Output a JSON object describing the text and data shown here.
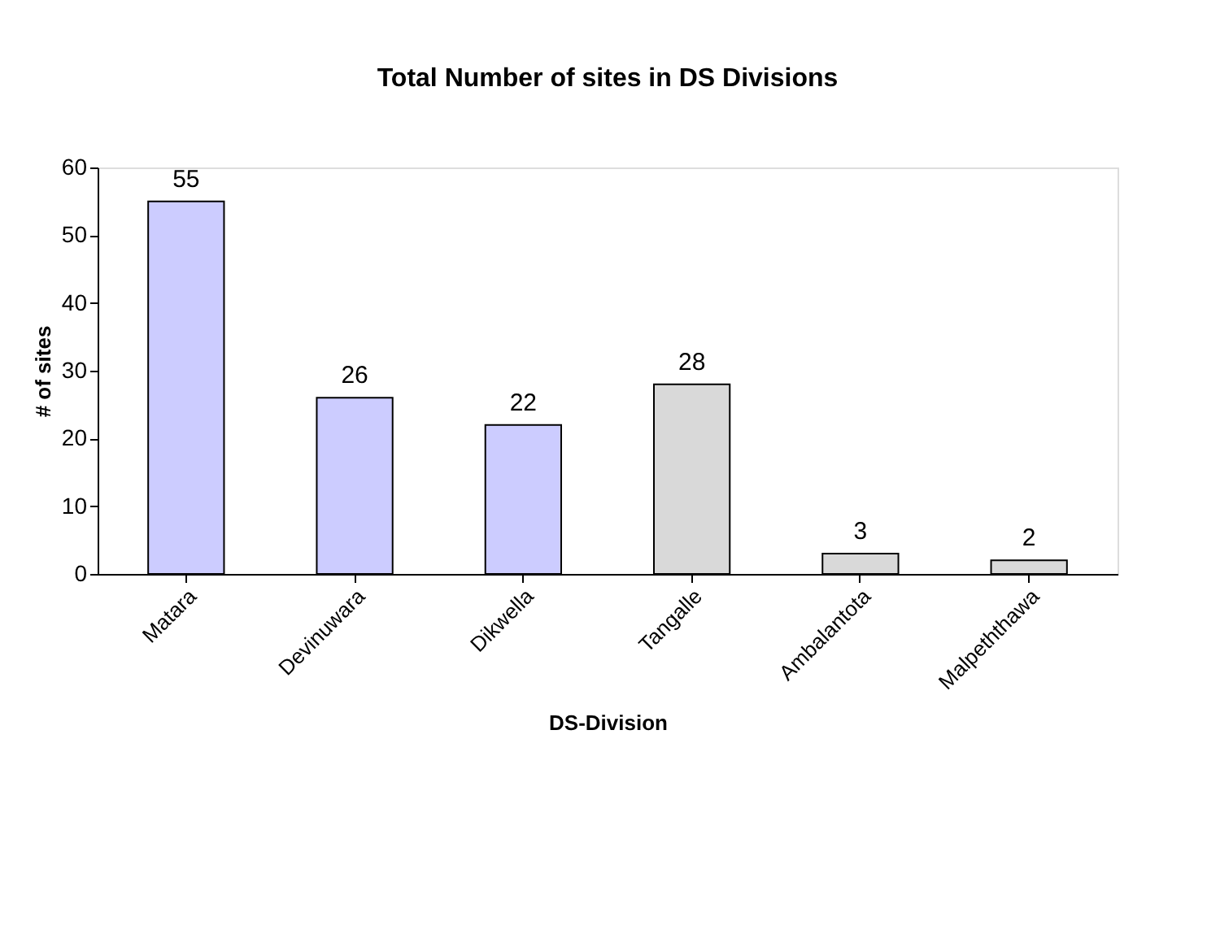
{
  "chart_data": {
    "type": "bar",
    "title": "Total Number of sites in DS Divisions",
    "xlabel": "DS-Division",
    "ylabel": "# of sites",
    "categories": [
      "Matara",
      "Devinuwara",
      "Dikwella",
      "Tangalle",
      "Ambalantota",
      "Malpeththawa"
    ],
    "values": [
      55,
      26,
      22,
      28,
      3,
      2
    ],
    "colors": [
      "#ccccff",
      "#ccccff",
      "#ccccff",
      "#d9d9d9",
      "#d9d9d9",
      "#d9d9d9"
    ],
    "ylim": [
      0,
      60
    ],
    "yticks": [
      0,
      10,
      20,
      30,
      40,
      50,
      60
    ],
    "grid": false,
    "data_labels": true
  }
}
